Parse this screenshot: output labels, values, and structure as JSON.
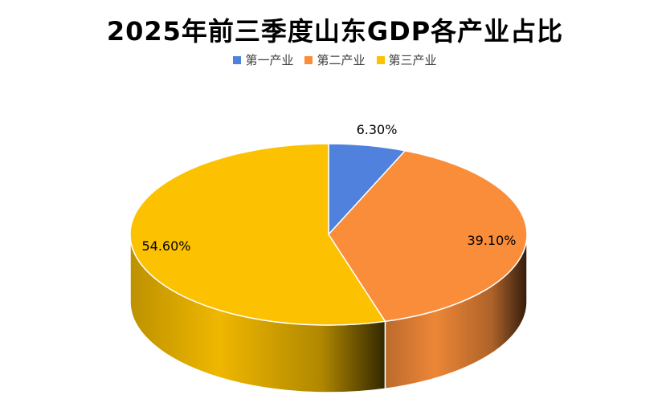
{
  "chart_data": {
    "type": "pie",
    "title": "2025年前三季度山东GDP各产业占比",
    "legend_position": "top",
    "categories": [
      "第一产业",
      "第二产业",
      "第三产业"
    ],
    "values": [
      6.3,
      39.1,
      54.6
    ],
    "data_labels": [
      "6.30%",
      "39.10%",
      "54.60%"
    ],
    "colors": [
      "#4f81dd",
      "#f98d3a",
      "#fcc100"
    ]
  }
}
